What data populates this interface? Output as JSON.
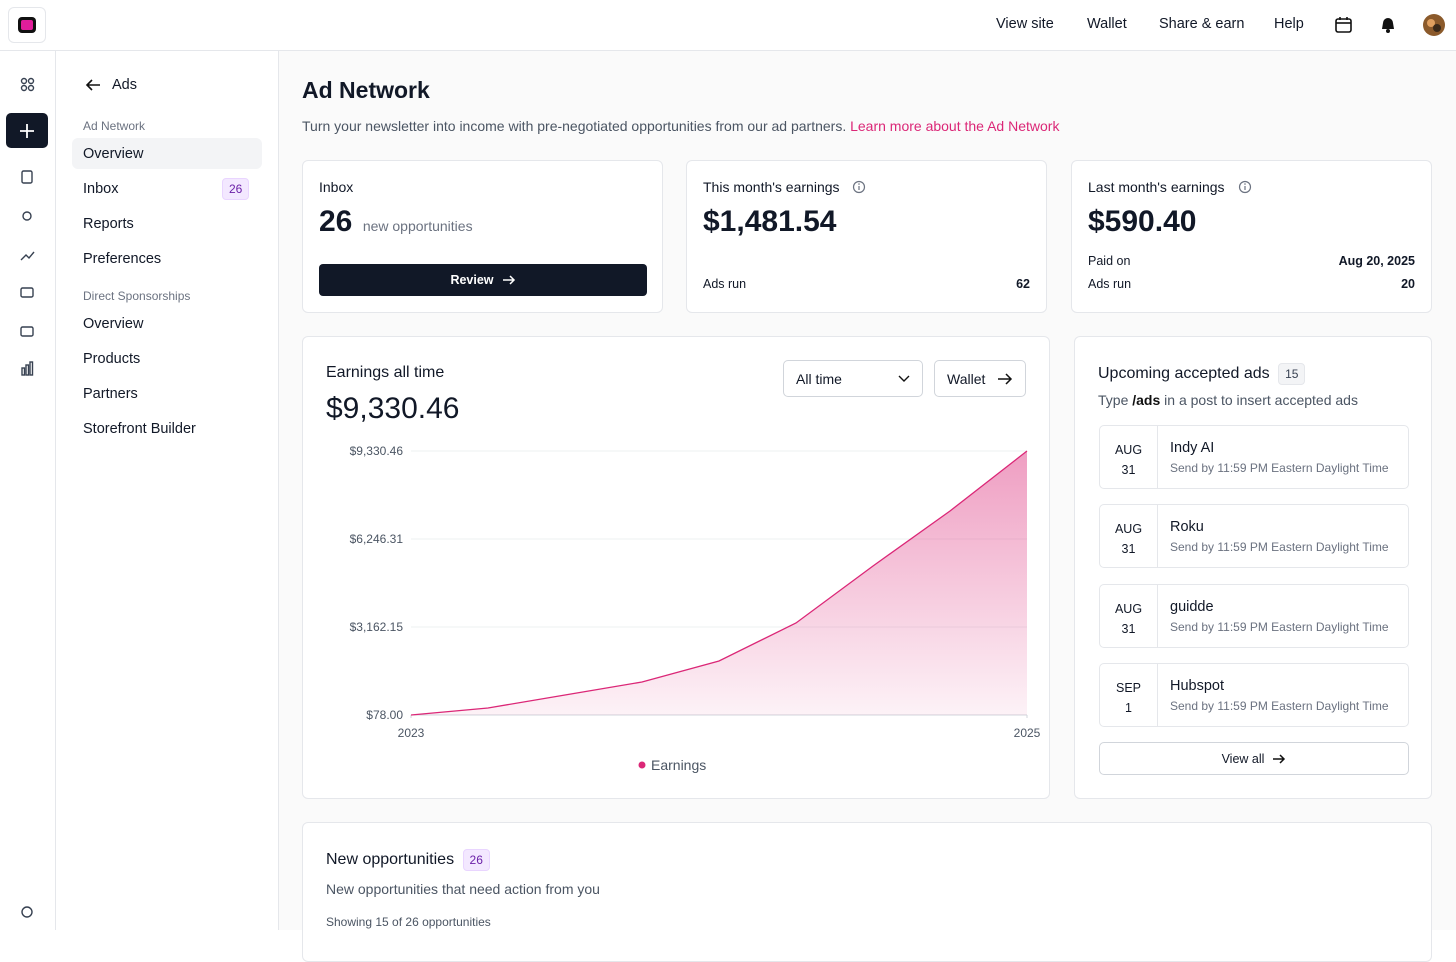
{
  "nav": {
    "links": [
      "View site",
      "Wallet",
      "Share & earn",
      "Help"
    ]
  },
  "sidebar": {
    "back": "Ads",
    "sections": [
      {
        "heading": "Ad Network",
        "items": [
          {
            "label": "Overview"
          },
          {
            "label": "Inbox",
            "badge": "26"
          },
          {
            "label": "Reports"
          },
          {
            "label": "Preferences"
          }
        ]
      },
      {
        "heading": "Direct Sponsorships",
        "items": [
          {
            "label": "Overview"
          },
          {
            "label": "Products"
          },
          {
            "label": "Partners"
          },
          {
            "label": "Storefront Builder"
          }
        ]
      }
    ]
  },
  "header": {
    "title": "Ad Network",
    "description": "Turn your newsletter into income with pre-negotiated opportunities from our ad partners.",
    "link": "Learn more about the Ad Network"
  },
  "cards": {
    "inbox": {
      "label": "Inbox",
      "count": "26",
      "sub": "new opportunities",
      "button": "Review"
    },
    "this_month": {
      "label": "This month's earnings",
      "amount": "$1,481.54",
      "rows": [
        {
          "label": "Ads run",
          "value": "62"
        }
      ]
    },
    "last_month": {
      "label": "Last month's earnings",
      "amount": "$590.40",
      "rows": [
        {
          "label": "Paid on",
          "value": "Aug 20, 2025"
        },
        {
          "label": "Ads run",
          "value": "20"
        }
      ]
    }
  },
  "earnings": {
    "title": "Earnings all time",
    "total": "$9,330.46",
    "filter": "All time",
    "wallet": "Wallet"
  },
  "chart_data": {
    "type": "area",
    "x": [
      2023,
      2023.25,
      2023.5,
      2023.75,
      2024,
      2024.25,
      2024.5,
      2024.75,
      2025
    ],
    "xlim": [
      2023,
      2025
    ],
    "xticks": [
      2023,
      2025
    ],
    "ylim": [
      78,
      9330.46
    ],
    "yticks": [
      {
        "value": 78,
        "label": "$78.00"
      },
      {
        "value": 3162.15,
        "label": "$3,162.15"
      },
      {
        "value": 6246.31,
        "label": "$6,246.31"
      },
      {
        "value": 9330.46,
        "label": "$9,330.46"
      }
    ],
    "grid": true,
    "series": [
      {
        "name": "Earnings",
        "color": "#db2777",
        "values": [
          78,
          323,
          779,
          1235,
          1971,
          3303,
          5300,
          7228,
          9330.46
        ]
      }
    ]
  },
  "upcoming": {
    "title": "Upcoming accepted ads",
    "count": "15",
    "hint": [
      "Type",
      "/ads",
      "in a post to insert accepted ads"
    ],
    "ads": [
      {
        "month": "AUG",
        "day": "31",
        "name": "Indy AI",
        "note": "Send by 11:59 PM Eastern Daylight Time"
      },
      {
        "month": "AUG",
        "day": "31",
        "name": "Roku",
        "note": "Send by 11:59 PM Eastern Daylight Time"
      },
      {
        "month": "AUG",
        "day": "31",
        "name": "guidde",
        "note": "Send by 11:59 PM Eastern Daylight Time"
      },
      {
        "month": "SEP",
        "day": "1",
        "name": "Hubspot",
        "note": "Send by 11:59 PM Eastern Daylight Time"
      }
    ],
    "view_all": "View all"
  },
  "opportunities": {
    "title": "New opportunities",
    "count": "26",
    "description": "New opportunities that need action from you",
    "showing": "Showing 15 of 26 opportunities"
  }
}
